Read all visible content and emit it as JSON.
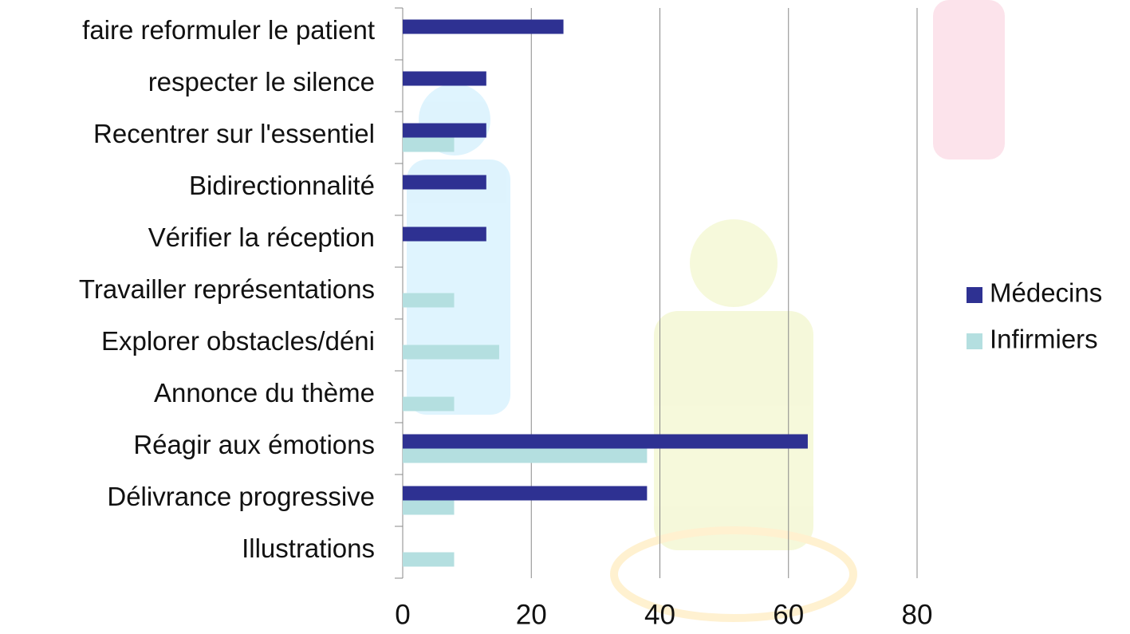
{
  "chart_data": {
    "type": "bar",
    "orientation": "horizontal",
    "categories": [
      "faire reformuler le patient",
      "respecter le silence",
      "Recentrer sur l'essentiel",
      "Bidirectionnalité",
      "Vérifier la réception",
      "Travailler représentations",
      "Explorer obstacles/déni",
      "Annonce du thème",
      "Réagir aux émotions",
      "Délivrance progressive",
      "Illustrations"
    ],
    "series": [
      {
        "name": "Médecins",
        "color": "#2e3192",
        "values": [
          25,
          13,
          13,
          13,
          13,
          0,
          0,
          0,
          63,
          38,
          0
        ]
      },
      {
        "name": "Infirmiers",
        "color": "#b4dfe0",
        "values": [
          0,
          0,
          8,
          0,
          0,
          8,
          15,
          8,
          38,
          8,
          8
        ]
      }
    ],
    "xlim": [
      0,
      80
    ],
    "xticks": [
      0,
      20,
      40,
      60,
      80
    ],
    "grid": true,
    "legend": "right"
  }
}
